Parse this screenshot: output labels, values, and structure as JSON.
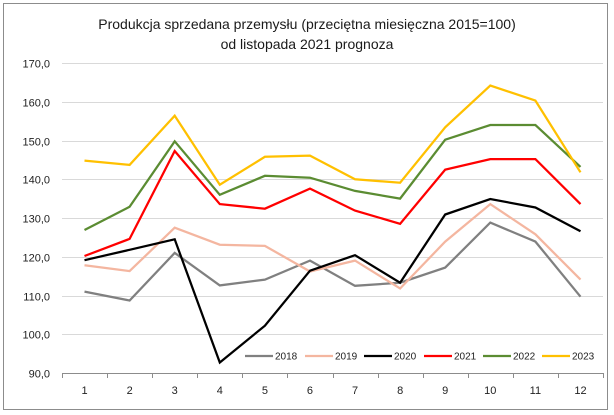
{
  "chart_data": {
    "type": "line",
    "title": "Produkcja sprzedana przemysłu (przeciętna miesięczna 2015=100)",
    "subtitle": "od listopada 2021 prognoza",
    "xlabel": "",
    "ylabel": "",
    "categories": [
      "1",
      "2",
      "3",
      "4",
      "5",
      "6",
      "7",
      "8",
      "9",
      "10",
      "11",
      "12"
    ],
    "ylim": [
      90,
      170
    ],
    "yticks": [
      "90,0",
      "100,0",
      "110,0",
      "120,0",
      "130,0",
      "140,0",
      "150,0",
      "160,0",
      "170,0"
    ],
    "ytick_values": [
      90,
      100,
      110,
      120,
      130,
      140,
      150,
      160,
      170
    ],
    "grid": true,
    "legend_position": "bottom-right",
    "series": [
      {
        "name": "2018",
        "color": "#808080",
        "values": [
          111.0,
          108.7,
          121.0,
          112.6,
          114.1,
          119.0,
          112.5,
          113.3,
          117.2,
          128.8,
          123.9,
          109.7
        ]
      },
      {
        "name": "2019",
        "color": "#f4b6a0",
        "values": [
          117.8,
          116.3,
          127.5,
          123.1,
          122.8,
          116.2,
          119.0,
          111.8,
          123.9,
          133.6,
          125.8,
          114.1
        ]
      },
      {
        "name": "2020",
        "color": "#000000",
        "values": [
          119.1,
          121.8,
          124.5,
          92.7,
          102.2,
          116.4,
          120.4,
          113.3,
          130.9,
          134.9,
          132.7,
          126.6
        ]
      },
      {
        "name": "2021",
        "color": "#ff0000",
        "values": [
          120.2,
          124.6,
          147.3,
          133.6,
          132.4,
          137.6,
          131.9,
          128.5,
          142.5,
          145.2,
          145.2,
          133.6
        ]
      },
      {
        "name": "2022",
        "color": "#5b8c32",
        "values": [
          126.9,
          132.9,
          149.8,
          136.0,
          140.9,
          140.4,
          137.0,
          135.0,
          150.2,
          154.0,
          154.0,
          143.2
        ]
      },
      {
        "name": "2023",
        "color": "#ffc000",
        "values": [
          144.8,
          143.7,
          156.4,
          138.6,
          145.8,
          146.1,
          140.0,
          139.1,
          153.4,
          164.2,
          160.3,
          141.8
        ]
      }
    ]
  }
}
